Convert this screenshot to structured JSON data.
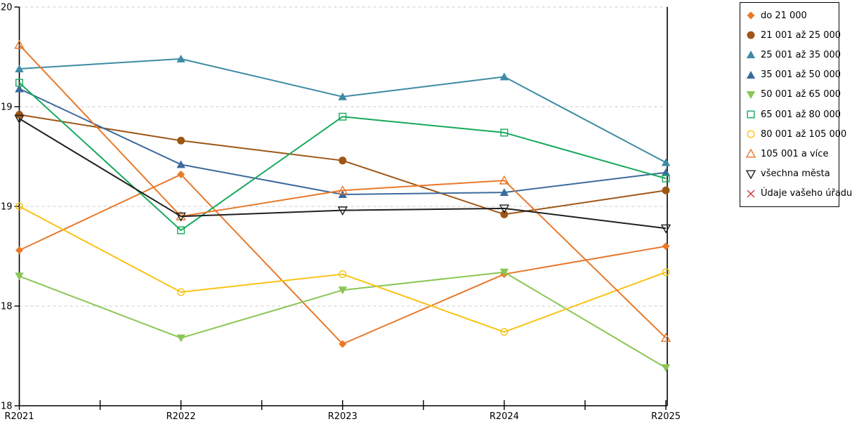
{
  "chart_data": {
    "type": "line",
    "title": "",
    "xlabel": "",
    "ylabel": "",
    "categories": [
      "R2021",
      "R2022",
      "R2023",
      "R2024",
      "R2025"
    ],
    "ylim": [
      18,
      20
    ],
    "ytick_step": 0.5,
    "ytick_labels_top_to_bottom": [
      "20",
      "19",
      "19",
      "18",
      "18"
    ],
    "grid": "horizontal-dashed",
    "legend_position": "right",
    "series": [
      {
        "name": "do 21 000",
        "marker": "diamond",
        "color": "#E8782A",
        "values": [
          18.78,
          19.16,
          18.31,
          18.66,
          18.8
        ]
      },
      {
        "name": "21 001 až 25 000",
        "marker": "circle",
        "color": "#9E5615",
        "values": [
          19.46,
          19.33,
          19.23,
          18.96,
          19.08
        ]
      },
      {
        "name": "25 001 až 35 000",
        "marker": "triangle-up",
        "color": "#3D8BA4",
        "values": [
          19.69,
          19.74,
          19.55,
          19.65,
          19.22
        ]
      },
      {
        "name": "35 001 až 50 000",
        "marker": "triangle-up",
        "color": "#3C6B9C",
        "values": [
          19.59,
          19.21,
          19.06,
          19.07,
          19.17
        ]
      },
      {
        "name": "50 001 až 65 000",
        "marker": "triangle-down",
        "color": "#8AC653",
        "values": [
          18.65,
          18.34,
          18.58,
          18.67,
          18.19
        ]
      },
      {
        "name": "65 001 až 80 000",
        "marker": "square-open",
        "color": "#16A85C",
        "values": [
          19.62,
          18.88,
          19.45,
          19.37,
          19.14
        ]
      },
      {
        "name": "80 001 až 105 000",
        "marker": "circle-open",
        "color": "#F9C313",
        "values": [
          19.0,
          18.57,
          18.66,
          18.37,
          18.67
        ]
      },
      {
        "name": "105 001 a více",
        "marker": "triangle-up-open",
        "color": "#E8782A",
        "values": [
          19.81,
          18.95,
          19.08,
          19.13,
          18.34
        ]
      },
      {
        "name": "všechna města",
        "marker": "triangle-down-open",
        "color": "#1F1F1F",
        "values": [
          19.44,
          18.95,
          18.98,
          18.99,
          18.89
        ]
      },
      {
        "name": "Údaje vašeho úřadu",
        "marker": "x",
        "color": "#CF3535",
        "values": []
      }
    ]
  },
  "style": {
    "grid_color": "#C9C9C9",
    "axis_color": "#000000",
    "background": "#FFFFFF"
  }
}
